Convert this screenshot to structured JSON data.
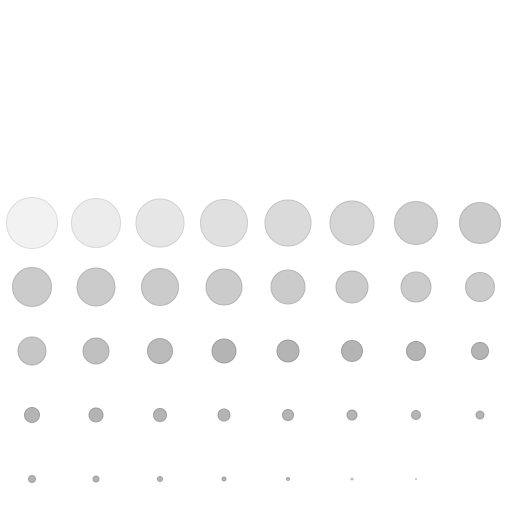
{
  "grid": {
    "columns": 8,
    "rows": [
      {
        "fill": [
          "#f2f2f2",
          "#ececec",
          "#e6e6e6",
          "#e0e0e0",
          "#dadada",
          "#d5d5d5",
          "#cfcfcf",
          "#cbcbcb"
        ],
        "border": [
          "#dcdcdc",
          "#d6d6d6",
          "#d0d0d0",
          "#cacaca",
          "#c4c4c4",
          "#bebebe",
          "#b8b8b8",
          "#b4b4b4"
        ]
      },
      {
        "fill": [
          "#cbcbcb",
          "#cbcbcb",
          "#cbcbcb",
          "#cbcbcb",
          "#cbcbcb",
          "#cbcbcb",
          "#cbcbcb",
          "#cbcbcb"
        ],
        "border": [
          "#b4b4b4",
          "#b4b4b4",
          "#b4b4b4",
          "#b4b4b4",
          "#b4b4b4",
          "#b4b4b4",
          "#b4b4b4",
          "#b4b4b4"
        ]
      },
      {
        "fill": [
          "#c6c6c6",
          "#c0c0c0",
          "#bababa",
          "#b4b4b4",
          "#b4b4b4",
          "#b4b4b4",
          "#b4b4b4",
          "#b4b4b4"
        ],
        "border": [
          "#b0b0b0",
          "#aaaaaa",
          "#a4a4a4",
          "#9e9e9e",
          "#9e9e9e",
          "#9e9e9e",
          "#9e9e9e",
          "#9e9e9e"
        ]
      },
      {
        "fill": [
          "#b4b4b4",
          "#b4b4b4",
          "#b4b4b4",
          "#b4b4b4",
          "#b4b4b4",
          "#b4b4b4",
          "#b4b4b4",
          "#b4b4b4"
        ],
        "border": [
          "#9e9e9e",
          "#9e9e9e",
          "#9e9e9e",
          "#9e9e9e",
          "#9e9e9e",
          "#9e9e9e",
          "#9e9e9e",
          "#9e9e9e"
        ]
      },
      {
        "fill": [
          "#b4b4b4",
          "#b4b4b4",
          "#b4b4b4",
          "#b4b4b4",
          "#b8b8b8",
          "#bcbcbc",
          "#c0c0c0",
          "#ffffff"
        ],
        "border": [
          "#9e9e9e",
          "#9e9e9e",
          "#9e9e9e",
          "#9e9e9e",
          "#a8a8a8",
          "#b0b0b0",
          "#b8b8b8",
          "#ffffff"
        ]
      }
    ]
  }
}
